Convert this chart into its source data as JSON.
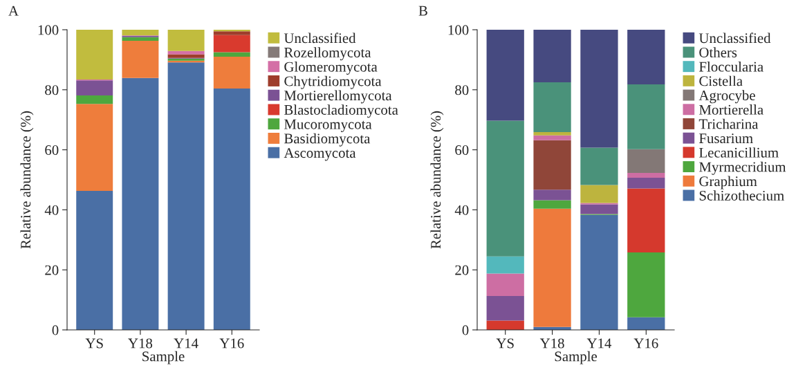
{
  "chart_data": [
    {
      "type": "bar",
      "title": "A",
      "xlabel": "Sample",
      "ylabel": "Relative abundance (%)",
      "categories": [
        "YS",
        "Y18",
        "Y14",
        "Y16"
      ],
      "stacked": true,
      "ylim": [
        0,
        100
      ],
      "yticks": [
        0,
        20,
        40,
        60,
        80,
        100
      ],
      "grid": false,
      "legend": "right",
      "series": [
        {
          "name": "Ascomycota",
          "color": "#4a6fa5",
          "values": [
            46.3,
            83.9,
            89.1,
            80.4
          ]
        },
        {
          "name": "Basidiomycota",
          "color": "#ee7d3c",
          "values": [
            29.0,
            12.4,
            0.6,
            10.6
          ]
        },
        {
          "name": "Mucoromycota",
          "color": "#4ea73e",
          "values": [
            2.8,
            1.2,
            0.7,
            1.5
          ]
        },
        {
          "name": "Blastocladiomycota",
          "color": "#d93a2e",
          "values": [
            0,
            null,
            null,
            5.7
          ]
        },
        {
          "name": "Mortierellomycota",
          "color": "#7b5294",
          "values": [
            5.0,
            0.5,
            0.2,
            0
          ]
        },
        {
          "name": "Chytridiomycota",
          "color": "#9e3d2c",
          "values": [
            0,
            0,
            1.2,
            1.3
          ]
        },
        {
          "name": "Glomeromycota",
          "color": "#d46fa6",
          "values": [
            0.3,
            0.1,
            1.1,
            0
          ]
        },
        {
          "name": "Rozellomycota",
          "color": "#857a78",
          "values": [
            0,
            null,
            null,
            null
          ]
        },
        {
          "name": "Unclassified",
          "color": "#c1bc3e",
          "values": [
            16.6,
            1.9,
            7.1,
            0.5
          ]
        }
      ]
    },
    {
      "type": "bar",
      "title": "B",
      "xlabel": "Sample",
      "ylabel": "Relative abundance (%)",
      "categories": [
        "YS",
        "Y18",
        "Y14",
        "Y16"
      ],
      "stacked": true,
      "ylim": [
        0,
        100
      ],
      "yticks": [
        0,
        20,
        40,
        60,
        80,
        100
      ],
      "grid": false,
      "legend": "right",
      "series": [
        {
          "name": "Schizothecium",
          "color": "#4a6fa5",
          "values": [
            0,
            1.0,
            38.3,
            4.2
          ]
        },
        {
          "name": "Graphium",
          "color": "#ee7a3c",
          "values": [
            0,
            39.4,
            0,
            0
          ]
        },
        {
          "name": "Myrmecridium",
          "color": "#4ea73e",
          "values": [
            0,
            2.8,
            0.3,
            21.6
          ]
        },
        {
          "name": "Lecanicillium",
          "color": "#d5392d",
          "values": [
            3.1,
            0,
            0,
            21.3
          ]
        },
        {
          "name": "Fusarium",
          "color": "#7b5294",
          "values": [
            8.2,
            3.5,
            3.2,
            3.6
          ]
        },
        {
          "name": "Tricharina",
          "color": "#904639",
          "values": [
            0,
            16.5,
            0,
            0
          ]
        },
        {
          "name": "Mortierella",
          "color": "#cd6ea3",
          "values": [
            7.5,
            1.6,
            0.5,
            1.6
          ]
        },
        {
          "name": "Agrocybe",
          "color": "#837876",
          "values": [
            0,
            0,
            0,
            7.9
          ]
        },
        {
          "name": "Cistella",
          "color": "#bdb43e",
          "values": [
            0,
            1.1,
            6.0,
            0
          ]
        },
        {
          "name": "Floccularia",
          "color": "#53b8bc",
          "values": [
            5.7,
            0,
            0,
            0
          ]
        },
        {
          "name": "Others",
          "color": "#4a927a",
          "values": [
            45.2,
            16.6,
            12.4,
            21.6
          ]
        },
        {
          "name": "Unclassified",
          "color": "#464a80",
          "values": [
            30.3,
            17.5,
            39.3,
            18.2
          ]
        }
      ]
    }
  ]
}
